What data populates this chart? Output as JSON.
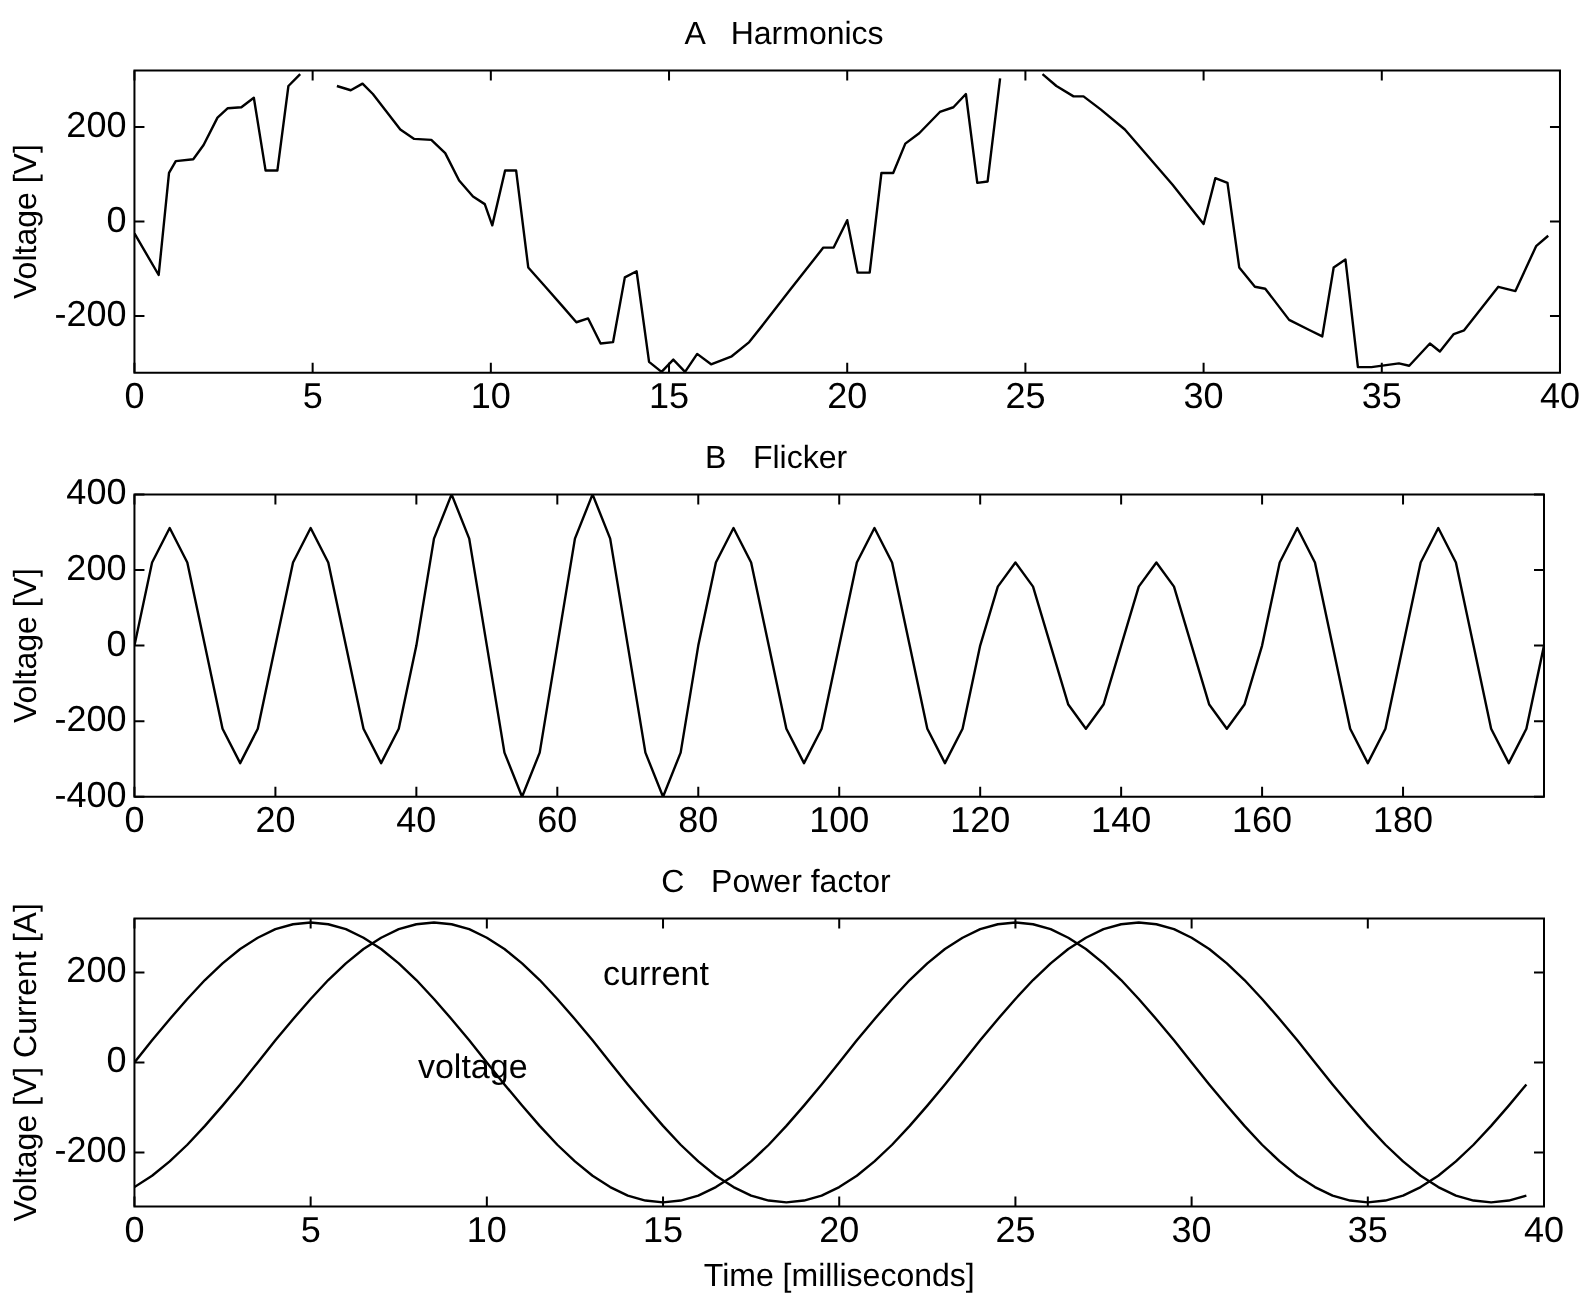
{
  "chart_data": [
    {
      "type": "line",
      "title": "A   Harmonics",
      "ylabel": "Voltage [V]",
      "xlim": [
        0,
        40
      ],
      "xticks": [
        0,
        5,
        10,
        15,
        20,
        25,
        30,
        35,
        40
      ],
      "ylim": [
        -320,
        320
      ],
      "yticks": [
        -200,
        0,
        200
      ],
      "grid": false,
      "legend": false,
      "series": [
        {
          "color": "#000000",
          "x": [
            0,
            0.68,
            0.97,
            1.16,
            1.65,
            1.94,
            2.33,
            2.62,
            3.0,
            3.35,
            3.68,
            4.01,
            4.32,
            4.65,
            5.0,
            5.33,
            5.68,
            6.07,
            6.4,
            6.69,
            7.46,
            7.85,
            8.33,
            8.72,
            9.11,
            9.5,
            9.83,
            10.04,
            10.4,
            10.71,
            11.05,
            11.53,
            12.02,
            12.4,
            12.73,
            13.08,
            13.43,
            13.76,
            14.09,
            14.44,
            14.79,
            15.12,
            15.45,
            15.79,
            16.18,
            16.76,
            17.25,
            17.64,
            18.37,
            19.33,
            19.62,
            20.0,
            20.29,
            20.63,
            20.96,
            21.29,
            21.63,
            22.02,
            22.6,
            22.98,
            23.33,
            23.65,
            23.94,
            24.29,
            24.62,
            25.0,
            25.48,
            25.87,
            26.35,
            26.63,
            27.12,
            27.79,
            29.13,
            30.0,
            30.33,
            30.67,
            31.0,
            31.44,
            31.73,
            32.4,
            32.98,
            33.33,
            33.65,
            33.98,
            34.33,
            34.71,
            35.48,
            35.77,
            36.35,
            36.63,
            37.02,
            37.31,
            38.27,
            38.75,
            39.33,
            39.67
          ],
          "values": [
            -25,
            -113,
            103,
            128,
            132,
            162,
            220,
            240,
            242,
            262,
            108,
            108,
            287,
            312,
            null,
            null,
            287,
            278,
            292,
            270,
            195,
            175,
            173,
            145,
            87,
            53,
            37,
            -8,
            108,
            108,
            -97,
            -138,
            -180,
            -213,
            -205,
            -258,
            -255,
            -118,
            -105,
            -297,
            -318,
            -292,
            -318,
            -280,
            -302,
            -285,
            -255,
            -218,
            -147,
            -55,
            -55,
            3,
            -108,
            -108,
            103,
            103,
            165,
            187,
            232,
            242,
            270,
            82,
            85,
            303,
            null,
            null,
            312,
            287,
            265,
            265,
            237,
            195,
            78,
            -5,
            92,
            82,
            -97,
            -138,
            -142,
            -208,
            -230,
            -243,
            -97,
            -80,
            -308,
            -308,
            -300,
            -305,
            -258,
            -275,
            -238,
            -230,
            -138,
            -147,
            -52,
            -30
          ]
        }
      ]
    },
    {
      "type": "line",
      "title": "B   Flicker",
      "ylabel": "Voltage [V]",
      "xlim": [
        0,
        200
      ],
      "xticks": [
        0,
        20,
        40,
        60,
        80,
        100,
        120,
        140,
        160,
        180
      ],
      "ylim": [
        -400,
        400
      ],
      "yticks": [
        -400,
        -200,
        0,
        200,
        400
      ],
      "grid": false,
      "legend": false,
      "series": [
        {
          "color": "#000000",
          "x": [
            0,
            2.5,
            5,
            7.5,
            10,
            12.5,
            15,
            17.5,
            20,
            22.5,
            25,
            27.5,
            30,
            32.5,
            35,
            37.5,
            40,
            42.5,
            45,
            47.5,
            50,
            52.5,
            55,
            57.5,
            60,
            62.5,
            65,
            67.5,
            70,
            72.5,
            75,
            77.5,
            80,
            82.5,
            85,
            87.5,
            90,
            92.5,
            95,
            97.5,
            100,
            102.5,
            105,
            107.5,
            110,
            112.5,
            115,
            117.5,
            120,
            122.5,
            125,
            127.5,
            130,
            132.5,
            135,
            137.5,
            140,
            142.5,
            145,
            147.5,
            150,
            152.5,
            155,
            157.5,
            160,
            162.5,
            165,
            167.5,
            170,
            172.5,
            175,
            177.5,
            180,
            182.5,
            185,
            187.5,
            190,
            192.5,
            195,
            197.5,
            200
          ],
          "values": [
            0,
            220,
            311,
            220,
            0,
            -220,
            -311,
            -220,
            0,
            220,
            311,
            220,
            0,
            -220,
            -311,
            -220,
            0,
            283,
            400,
            283,
            0,
            -283,
            -400,
            -283,
            0,
            283,
            400,
            283,
            0,
            -283,
            -400,
            -283,
            0,
            220,
            311,
            220,
            0,
            -220,
            -311,
            -220,
            0,
            220,
            311,
            220,
            0,
            -220,
            -311,
            -220,
            0,
            156,
            220,
            156,
            0,
            -156,
            -220,
            -156,
            0,
            156,
            220,
            156,
            0,
            -156,
            -220,
            -156,
            0,
            220,
            311,
            220,
            0,
            -220,
            -311,
            -220,
            0,
            220,
            311,
            220,
            0,
            -220,
            -311,
            -220,
            0
          ]
        }
      ]
    },
    {
      "type": "line",
      "title": "C   Power factor",
      "xlabel": "Time [milliseconds]",
      "ylabel": "Voltage [V] Current [A]",
      "xlim": [
        0,
        40
      ],
      "xticks": [
        0,
        5,
        10,
        15,
        20,
        25,
        30,
        35,
        40
      ],
      "ylim": [
        -320,
        320
      ],
      "yticks": [
        -200,
        0,
        200
      ],
      "grid": false,
      "legend": false,
      "x": [
        0,
        0.5,
        1,
        1.5,
        2,
        2.5,
        3,
        3.5,
        4,
        4.5,
        5,
        5.5,
        6,
        6.5,
        7,
        7.5,
        8,
        8.5,
        9,
        9.5,
        10,
        10.5,
        11,
        11.5,
        12,
        12.5,
        13,
        13.5,
        14,
        14.5,
        15,
        15.5,
        16,
        16.5,
        17,
        17.5,
        18,
        18.5,
        19,
        19.5,
        20,
        20.5,
        21,
        21.5,
        22,
        22.5,
        23,
        23.5,
        24,
        24.5,
        25,
        25.5,
        26,
        26.5,
        27,
        27.5,
        28,
        28.5,
        29,
        29.5,
        30,
        30.5,
        31,
        31.5,
        32,
        32.5,
        33,
        33.5,
        34,
        34.5,
        35,
        35.5,
        36,
        36.5,
        37,
        37.5,
        38,
        38.5,
        39,
        39.5
      ],
      "annotations": [
        "current",
        "voltage"
      ],
      "series": [
        {
          "color": "#000000",
          "values": [
            0,
            49,
            96,
            141,
            183,
            220,
            252,
            277,
            296,
            307,
            311,
            307,
            296,
            277,
            252,
            220,
            183,
            141,
            96,
            49,
            0,
            -49,
            -96,
            -141,
            -183,
            -220,
            -252,
            -277,
            -296,
            -307,
            -311,
            -307,
            -296,
            -277,
            -252,
            -220,
            -183,
            -141,
            -96,
            -49,
            0,
            49,
            96,
            141,
            183,
            220,
            252,
            277,
            296,
            307,
            311,
            307,
            296,
            277,
            252,
            220,
            183,
            141,
            96,
            49,
            0,
            -49,
            -96,
            -141,
            -183,
            -220,
            -252,
            -277,
            -296,
            -307,
            -311,
            -307,
            -296,
            -277,
            -252,
            -220,
            -183,
            -141,
            -96,
            -49
          ]
        },
        {
          "color": "#000000",
          "values": [
            -277,
            -252,
            -220,
            -183,
            -141,
            -96,
            -49,
            0,
            49,
            96,
            141,
            183,
            220,
            252,
            277,
            296,
            307,
            311,
            307,
            296,
            277,
            252,
            220,
            183,
            141,
            96,
            49,
            0,
            -49,
            -96,
            -141,
            -183,
            -220,
            -252,
            -277,
            -296,
            -307,
            -311,
            -307,
            -296,
            -277,
            -252,
            -220,
            -183,
            -141,
            -96,
            -49,
            0,
            49,
            96,
            141,
            183,
            220,
            252,
            277,
            296,
            307,
            311,
            307,
            296,
            277,
            252,
            220,
            183,
            141,
            96,
            49,
            0,
            -49,
            -96,
            -141,
            -183,
            -220,
            -252,
            -277,
            -296,
            -307,
            -311,
            -307,
            -296
          ]
        }
      ]
    }
  ]
}
